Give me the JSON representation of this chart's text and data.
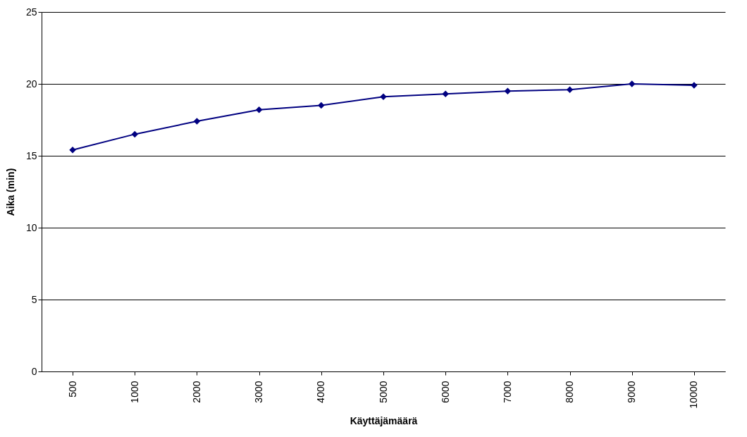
{
  "chart_data": {
    "type": "line",
    "xlabel": "Käyttäjämäärä",
    "ylabel": "Aika (min)",
    "categories": [
      "500",
      "1000",
      "2000",
      "3000",
      "4000",
      "5000",
      "6000",
      "7000",
      "8000",
      "9000",
      "10000"
    ],
    "series": [
      {
        "color": "#000080",
        "values": [
          15.4,
          16.5,
          17.4,
          18.2,
          18.5,
          19.1,
          19.3,
          19.5,
          19.6,
          20.0,
          19.9
        ]
      }
    ],
    "ylim": [
      0,
      25
    ],
    "yticks": [
      0,
      5,
      10,
      15,
      20,
      25
    ],
    "grid": "y",
    "marker": "diamond",
    "line_style": "solid",
    "legend": false
  }
}
